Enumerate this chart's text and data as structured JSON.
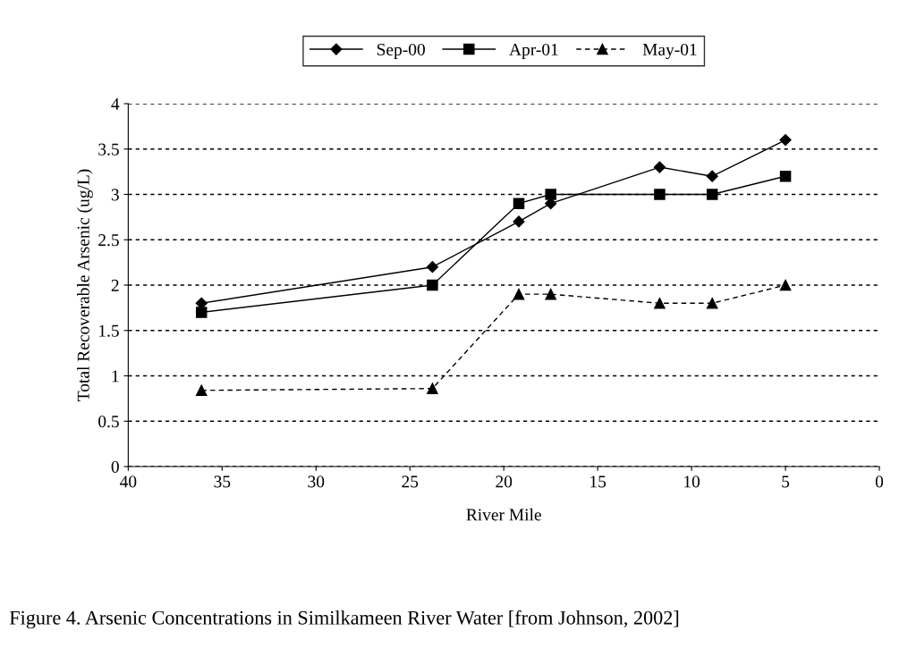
{
  "chart_data": {
    "type": "line",
    "xlabel": "River Mile",
    "ylabel": "Total Recoverable Arsenic (ug/L)",
    "x": [
      36.1,
      23.8,
      19.2,
      17.5,
      11.7,
      8.9,
      5.0
    ],
    "series": [
      {
        "name": "Sep-00",
        "color": "#000000",
        "marker": "diamond",
        "line_style": "solid",
        "values": [
          1.8,
          2.2,
          2.7,
          2.9,
          3.3,
          3.2,
          3.6
        ]
      },
      {
        "name": "Apr-01",
        "color": "#000000",
        "marker": "square",
        "line_style": "solid",
        "values": [
          1.7,
          2.0,
          2.9,
          3.0,
          3.0,
          3.0,
          3.2
        ]
      },
      {
        "name": "May-01",
        "color": "#000000",
        "marker": "triangle",
        "line_style": "dashed",
        "values": [
          0.84,
          0.86,
          1.9,
          1.9,
          1.8,
          1.8,
          2.0
        ]
      }
    ],
    "xlim": [
      40,
      0
    ],
    "xticks": [
      40,
      35,
      30,
      25,
      20,
      15,
      10,
      5,
      0
    ],
    "ylim": [
      0,
      4
    ],
    "yticks": [
      0,
      0.5,
      1,
      1.5,
      2,
      2.5,
      3,
      3.5,
      4
    ],
    "grid": "y",
    "legend": "top",
    "annotations": [
      "Figure 4. Arsenic Concentrations in Similkameen River Water [from Johnson, 2002]"
    ]
  }
}
